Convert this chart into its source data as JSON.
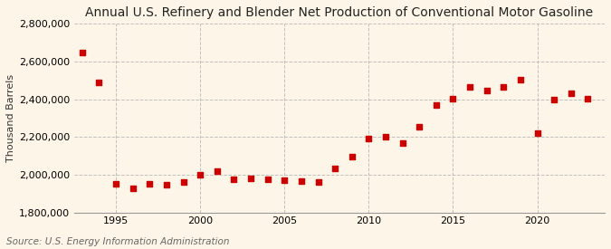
{
  "title": "Annual U.S. Refinery and Blender Net Production of Conventional Motor Gasoline",
  "ylabel": "Thousand Barrels",
  "source": "Source: U.S. Energy Information Administration",
  "years": [
    1993,
    1994,
    1995,
    1996,
    1997,
    1998,
    1999,
    2000,
    2001,
    2002,
    2003,
    2004,
    2005,
    2006,
    2007,
    2008,
    2009,
    2010,
    2011,
    2012,
    2013,
    2014,
    2015,
    2016,
    2017,
    2018,
    2019,
    2020,
    2021,
    2022,
    2023
  ],
  "values": [
    2650000,
    2490000,
    1950000,
    1930000,
    1950000,
    1945000,
    1960000,
    2000000,
    2020000,
    1975000,
    1980000,
    1975000,
    1970000,
    1965000,
    1960000,
    2035000,
    2095000,
    2190000,
    2200000,
    2170000,
    2255000,
    2370000,
    2405000,
    2465000,
    2445000,
    2465000,
    2505000,
    2220000,
    2400000,
    2430000,
    2405000
  ],
  "marker_color": "#cc0000",
  "marker": "s",
  "marker_size": 4,
  "bg_color": "#fdf6e8",
  "grid_color": "#bbbbbb",
  "ylim": [
    1800000,
    2800000
  ],
  "yticks": [
    1800000,
    2000000,
    2200000,
    2400000,
    2600000,
    2800000
  ],
  "xlim": [
    1992.5,
    2024
  ],
  "xticks": [
    1995,
    2000,
    2005,
    2010,
    2015,
    2020
  ],
  "title_fontsize": 10,
  "label_fontsize": 8,
  "tick_fontsize": 8,
  "source_fontsize": 7.5
}
